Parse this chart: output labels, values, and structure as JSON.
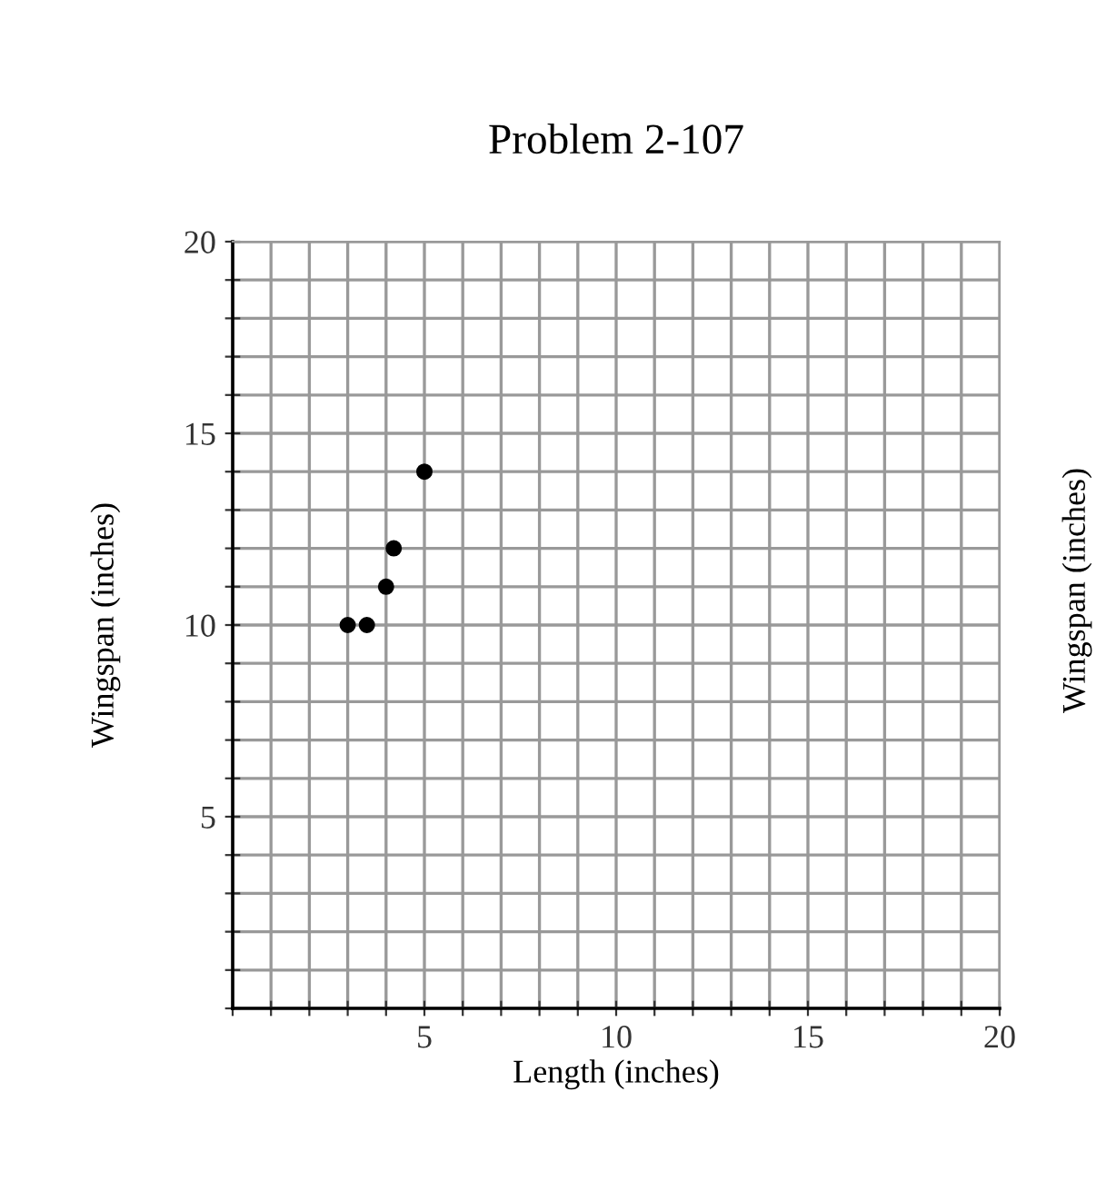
{
  "chart_data": {
    "type": "scatter",
    "title": "Problem 2-107",
    "xlabel": "Length (inches)",
    "ylabel": "Wingspan (inches)",
    "annotations": [
      "Wingspan (inches)"
    ],
    "x": [
      3,
      3.5,
      4,
      4.2,
      5
    ],
    "values": [
      10,
      10,
      11,
      12,
      14
    ],
    "color": "#000000",
    "marker": "circle",
    "xlim": [
      0,
      20
    ],
    "ylim": [
      0,
      20
    ],
    "xticks": [
      {
        "value": 0,
        "label": null
      },
      {
        "value": 1,
        "label": null
      },
      {
        "value": 2,
        "label": null
      },
      {
        "value": 3,
        "label": null
      },
      {
        "value": 4,
        "label": null
      },
      5,
      {
        "value": 6,
        "label": null
      },
      {
        "value": 7,
        "label": null
      },
      {
        "value": 8,
        "label": null
      },
      {
        "value": 9,
        "label": null
      },
      10,
      {
        "value": 11,
        "label": null
      },
      {
        "value": 12,
        "label": null
      },
      {
        "value": 13,
        "label": null
      },
      {
        "value": 14,
        "label": null
      },
      15,
      {
        "value": 16,
        "label": null
      },
      {
        "value": 17,
        "label": null
      },
      {
        "value": 18,
        "label": null
      },
      {
        "value": 19,
        "label": null
      },
      20
    ],
    "yticks": [
      {
        "value": 0,
        "label": null
      },
      {
        "value": 1,
        "label": null
      },
      {
        "value": 2,
        "label": null
      },
      {
        "value": 3,
        "label": null
      },
      {
        "value": 4,
        "label": null
      },
      5,
      {
        "value": 6,
        "label": null
      },
      {
        "value": 7,
        "label": null
      },
      {
        "value": 8,
        "label": null
      },
      {
        "value": 9,
        "label": null
      },
      10,
      {
        "value": 11,
        "label": null
      },
      {
        "value": 12,
        "label": null
      },
      {
        "value": 13,
        "label": null
      },
      {
        "value": 14,
        "label": null
      },
      15,
      {
        "value": 16,
        "label": null
      },
      {
        "value": 17,
        "label": null
      },
      {
        "value": 18,
        "label": null
      },
      {
        "value": 19,
        "label": null
      },
      20
    ],
    "grid": true
  }
}
